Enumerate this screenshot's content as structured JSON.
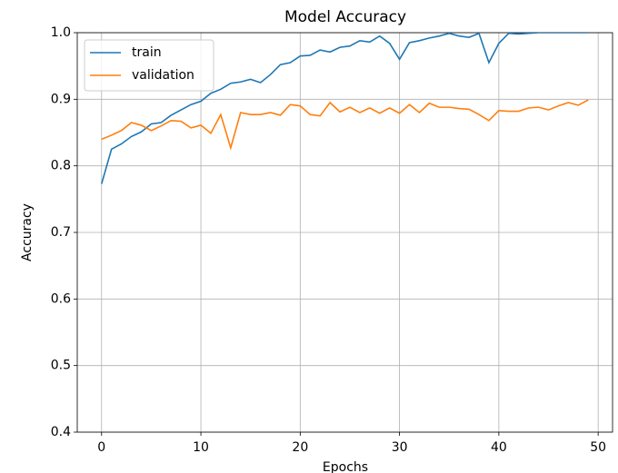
{
  "chart_data": {
    "type": "line",
    "title": "Model Accuracy",
    "x_label": "Epochs",
    "y_label": "Accuracy",
    "x": [
      0,
      1,
      2,
      3,
      4,
      5,
      6,
      7,
      8,
      9,
      10,
      11,
      12,
      13,
      14,
      15,
      16,
      17,
      18,
      19,
      20,
      21,
      22,
      23,
      24,
      25,
      26,
      27,
      28,
      29,
      30,
      31,
      32,
      33,
      34,
      35,
      36,
      37,
      38,
      39,
      40,
      41,
      42,
      43,
      44,
      45,
      46,
      47,
      48,
      49
    ],
    "series": [
      {
        "name": "train",
        "color": "#1f77b4",
        "values": [
          0.773,
          0.825,
          0.833,
          0.844,
          0.851,
          0.863,
          0.865,
          0.876,
          0.884,
          0.892,
          0.897,
          0.909,
          0.915,
          0.924,
          0.926,
          0.93,
          0.925,
          0.937,
          0.952,
          0.955,
          0.965,
          0.966,
          0.974,
          0.971,
          0.978,
          0.98,
          0.988,
          0.986,
          0.995,
          0.984,
          0.96,
          0.985,
          0.988,
          0.992,
          0.995,
          0.999,
          0.995,
          0.993,
          0.999,
          0.955,
          0.984,
          0.999,
          0.998,
          0.999,
          1.0,
          1.0,
          1.0,
          1.0,
          1.0,
          1.0
        ]
      },
      {
        "name": "validation",
        "color": "#ff7f0e",
        "values": [
          0.84,
          0.846,
          0.853,
          0.865,
          0.861,
          0.853,
          0.86,
          0.868,
          0.867,
          0.857,
          0.861,
          0.849,
          0.877,
          0.827,
          0.88,
          0.877,
          0.877,
          0.88,
          0.876,
          0.892,
          0.89,
          0.877,
          0.875,
          0.895,
          0.881,
          0.888,
          0.88,
          0.887,
          0.879,
          0.887,
          0.879,
          0.892,
          0.88,
          0.894,
          0.888,
          0.888,
          0.886,
          0.885,
          0.877,
          0.868,
          0.883,
          0.882,
          0.882,
          0.887,
          0.888,
          0.884,
          0.89,
          0.895,
          0.891,
          0.899
        ]
      }
    ],
    "xlim": [
      -2.45,
      51.45
    ],
    "ylim": [
      0.4,
      1.0
    ],
    "xticks": [
      0,
      10,
      20,
      30,
      40,
      50
    ],
    "yticks": [
      0.4,
      0.5,
      0.6,
      0.7,
      0.8,
      0.9,
      {
        "value": 1.0,
        "label": "1.0"
      }
    ],
    "grid": true,
    "legend": "upper left"
  }
}
